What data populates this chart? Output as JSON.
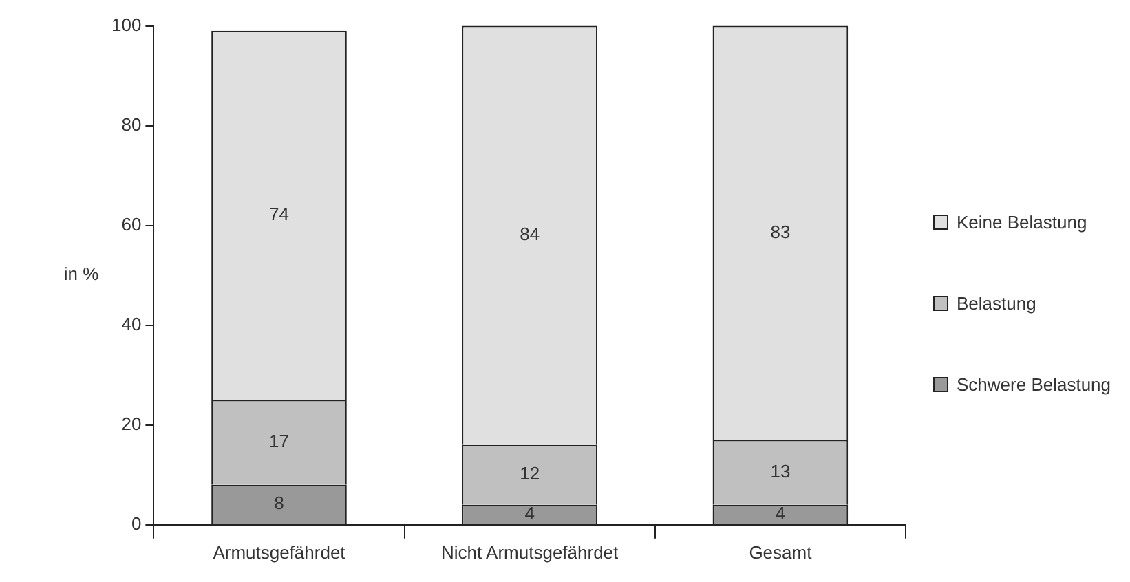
{
  "chart_data": {
    "type": "bar",
    "stacked": true,
    "ylabel": "in %",
    "categories": [
      "Armutsgefährdet",
      "Nicht Armutsgefährdet",
      "Gesamt"
    ],
    "series": [
      {
        "name": "Schwere Belastung",
        "color": "#999999",
        "values": [
          8,
          4,
          4
        ]
      },
      {
        "name": "Belastung",
        "color": "#c0c0c0",
        "values": [
          17,
          12,
          13
        ]
      },
      {
        "name": "Keine Belastung",
        "color": "#e0e0e0",
        "values": [
          74,
          84,
          83
        ]
      }
    ],
    "ylim": [
      0,
      100
    ],
    "yticks": [
      0,
      20,
      40,
      60,
      80,
      100
    ],
    "grid": false,
    "legend": "right",
    "data_labels": true
  }
}
